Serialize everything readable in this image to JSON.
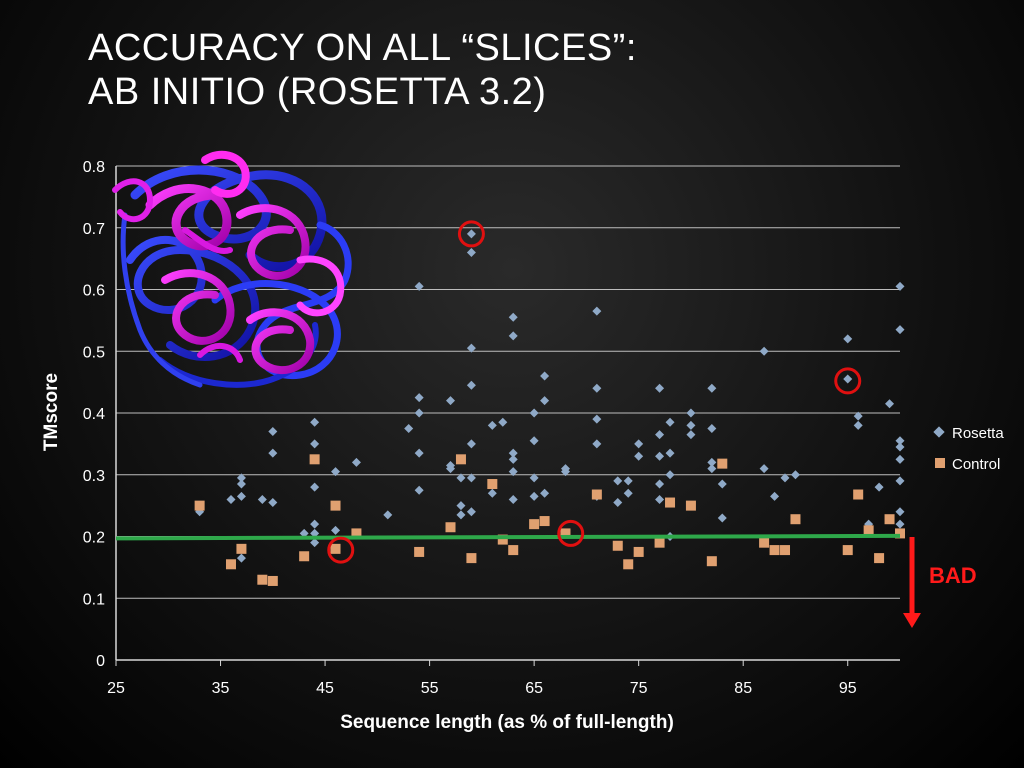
{
  "slide": {
    "title_line1": "ACCURACY ON ALL “SLICES”:",
    "title_line2": "AB INITIO (ROSETTA 3.2)"
  },
  "colors": {
    "rosetta": "#8fa9c7",
    "control": "#e0a070",
    "threshold": "#2ea84a",
    "highlight": "#e01010",
    "bad": "#ff1a1a"
  },
  "chart_data": {
    "type": "scatter",
    "xlabel": "Sequence length (as % of full-length)",
    "ylabel": "TMscore",
    "xlim": [
      25,
      100
    ],
    "ylim": [
      0,
      0.8
    ],
    "xticks": [
      25,
      35,
      45,
      55,
      65,
      75,
      85,
      95
    ],
    "yticks": [
      0,
      0.1,
      0.2,
      0.3,
      0.4,
      0.5,
      0.6,
      0.7,
      0.8
    ],
    "grid": "horizontal",
    "legend_position": "right",
    "series": [
      {
        "name": "Rosetta",
        "marker": "diamond",
        "points": [
          [
            33,
            0.24
          ],
          [
            36,
            0.26
          ],
          [
            37,
            0.295
          ],
          [
            37,
            0.285
          ],
          [
            37,
            0.265
          ],
          [
            37,
            0.165
          ],
          [
            39,
            0.26
          ],
          [
            40,
            0.37
          ],
          [
            40,
            0.335
          ],
          [
            40,
            0.255
          ],
          [
            43,
            0.205
          ],
          [
            44,
            0.385
          ],
          [
            44,
            0.35
          ],
          [
            44,
            0.28
          ],
          [
            44,
            0.22
          ],
          [
            44,
            0.205
          ],
          [
            44,
            0.19
          ],
          [
            46,
            0.305
          ],
          [
            46,
            0.21
          ],
          [
            48,
            0.32
          ],
          [
            51,
            0.235
          ],
          [
            53,
            0.375
          ],
          [
            54,
            0.605
          ],
          [
            54,
            0.425
          ],
          [
            54,
            0.4
          ],
          [
            54,
            0.335
          ],
          [
            54,
            0.275
          ],
          [
            57,
            0.42
          ],
          [
            57,
            0.315
          ],
          [
            57,
            0.31
          ],
          [
            58,
            0.295
          ],
          [
            58,
            0.25
          ],
          [
            58,
            0.235
          ],
          [
            59,
            0.69
          ],
          [
            59,
            0.66
          ],
          [
            59,
            0.505
          ],
          [
            59,
            0.445
          ],
          [
            59,
            0.35
          ],
          [
            59,
            0.295
          ],
          [
            59,
            0.24
          ],
          [
            61,
            0.38
          ],
          [
            61,
            0.27
          ],
          [
            62,
            0.385
          ],
          [
            63,
            0.555
          ],
          [
            63,
            0.525
          ],
          [
            63,
            0.335
          ],
          [
            63,
            0.325
          ],
          [
            63,
            0.305
          ],
          [
            63,
            0.26
          ],
          [
            65,
            0.4
          ],
          [
            65,
            0.355
          ],
          [
            65,
            0.295
          ],
          [
            65,
            0.265
          ],
          [
            66,
            0.46
          ],
          [
            66,
            0.42
          ],
          [
            66,
            0.27
          ],
          [
            68,
            0.31
          ],
          [
            68,
            0.305
          ],
          [
            71,
            0.565
          ],
          [
            71,
            0.44
          ],
          [
            71,
            0.39
          ],
          [
            71,
            0.35
          ],
          [
            71,
            0.265
          ],
          [
            73,
            0.29
          ],
          [
            73,
            0.255
          ],
          [
            74,
            0.29
          ],
          [
            74,
            0.27
          ],
          [
            75,
            0.35
          ],
          [
            75,
            0.33
          ],
          [
            77,
            0.44
          ],
          [
            77,
            0.365
          ],
          [
            77,
            0.33
          ],
          [
            77,
            0.285
          ],
          [
            77,
            0.26
          ],
          [
            78,
            0.385
          ],
          [
            78,
            0.335
          ],
          [
            78,
            0.3
          ],
          [
            78,
            0.2
          ],
          [
            80,
            0.4
          ],
          [
            80,
            0.38
          ],
          [
            80,
            0.365
          ],
          [
            82,
            0.44
          ],
          [
            82,
            0.375
          ],
          [
            82,
            0.32
          ],
          [
            82,
            0.31
          ],
          [
            83,
            0.285
          ],
          [
            83,
            0.23
          ],
          [
            87,
            0.5
          ],
          [
            87,
            0.31
          ],
          [
            88,
            0.265
          ],
          [
            89,
            0.295
          ],
          [
            90,
            0.3
          ],
          [
            95,
            0.52
          ],
          [
            95,
            0.455
          ],
          [
            96,
            0.395
          ],
          [
            96,
            0.38
          ],
          [
            97,
            0.22
          ],
          [
            98,
            0.28
          ],
          [
            99,
            0.415
          ],
          [
            100,
            0.605
          ],
          [
            100,
            0.535
          ],
          [
            100,
            0.355
          ],
          [
            100,
            0.345
          ],
          [
            100,
            0.325
          ],
          [
            100,
            0.29
          ],
          [
            100,
            0.24
          ],
          [
            100,
            0.22
          ],
          [
            100,
            0.205
          ]
        ]
      },
      {
        "name": "Control",
        "marker": "square",
        "points": [
          [
            33,
            0.25
          ],
          [
            36,
            0.155
          ],
          [
            37,
            0.18
          ],
          [
            39,
            0.13
          ],
          [
            40,
            0.128
          ],
          [
            43,
            0.168
          ],
          [
            44,
            0.325
          ],
          [
            46,
            0.25
          ],
          [
            46,
            0.18
          ],
          [
            48,
            0.205
          ],
          [
            54,
            0.175
          ],
          [
            57,
            0.215
          ],
          [
            58,
            0.325
          ],
          [
            59,
            0.165
          ],
          [
            61,
            0.285
          ],
          [
            62,
            0.195
          ],
          [
            63,
            0.178
          ],
          [
            65,
            0.22
          ],
          [
            66,
            0.225
          ],
          [
            68,
            0.205
          ],
          [
            71,
            0.268
          ],
          [
            73,
            0.185
          ],
          [
            74,
            0.155
          ],
          [
            75,
            0.175
          ],
          [
            77,
            0.19
          ],
          [
            78,
            0.255
          ],
          [
            80,
            0.25
          ],
          [
            82,
            0.16
          ],
          [
            83,
            0.318
          ],
          [
            87,
            0.19
          ],
          [
            88,
            0.178
          ],
          [
            89,
            0.178
          ],
          [
            90,
            0.228
          ],
          [
            95,
            0.178
          ],
          [
            96,
            0.268
          ],
          [
            97,
            0.21
          ],
          [
            98,
            0.165
          ],
          [
            99,
            0.228
          ],
          [
            100,
            0.205
          ]
        ]
      }
    ],
    "threshold_line": {
      "x": [
        25,
        100
      ],
      "y": [
        0.197,
        0.201
      ]
    },
    "highlighted_points": [
      [
        59,
        0.69
      ],
      [
        46.5,
        0.178
      ],
      [
        68.5,
        0.205
      ],
      [
        95,
        0.452
      ]
    ],
    "annotation": {
      "text": "BAD"
    }
  }
}
